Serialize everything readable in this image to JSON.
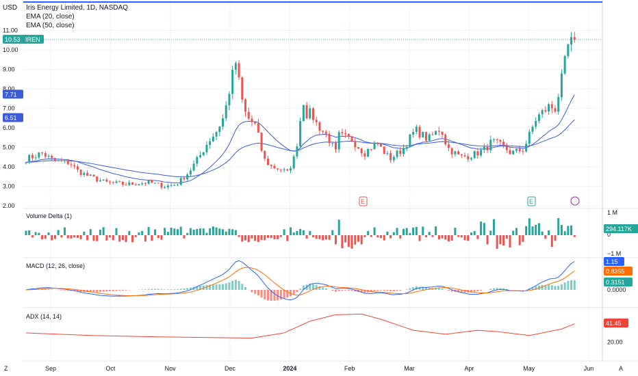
{
  "header": {
    "currency": "USD",
    "symbol_title": "Iris Energy Limited, 1D, NASDAQ",
    "ema20_label": "EMA (20, close)",
    "ema50_label": "EMA (50, close)",
    "last_price_badge": "10.53",
    "ticker_badge": "IREN"
  },
  "colors": {
    "up": "#26a69a",
    "down": "#ef5350",
    "ema": "#3b5bdb",
    "macd": "#2962ff",
    "signal": "#ff6d00",
    "adx": "#f44336",
    "axis_text": "#131722",
    "grid": "#f0f3fa"
  },
  "chart_data": [
    {
      "type": "candlestick",
      "pane": "price",
      "title": "Iris Energy Limited, 1D, NASDAQ",
      "ylabel": "USD",
      "ylim": [
        2.0,
        11.5
      ],
      "price_ticks": [
        "11.00",
        "10.00",
        "9.00",
        "8.00",
        "7.00",
        "6.00",
        "5.00",
        "4.00",
        "3.00",
        "2.00"
      ],
      "x_ticks": [
        "Sep",
        "Oct",
        "Nov",
        "Dec",
        "2024",
        "Feb",
        "Mar",
        "Apr",
        "May",
        "Jun"
      ],
      "ema_badges": {
        "ema20": "7.71",
        "ema50": "6.51"
      },
      "earnings_markers": [
        "E",
        "E"
      ],
      "bars": 171,
      "last_close": 10.53
    },
    {
      "type": "bar",
      "pane": "volume_delta",
      "label": "Volume Delta (1)",
      "ticks": [
        "1 M",
        "0",
        "−1 M"
      ],
      "last_value": "294.117K"
    },
    {
      "type": "line",
      "pane": "macd",
      "label": "MACD (12, 26, close)",
      "ticks": [
        "0.0000"
      ],
      "badges": {
        "macd": "1.15",
        "signal": "0.8355",
        "histogram": "0.3151"
      }
    },
    {
      "type": "line",
      "pane": "adx",
      "label": "ADX (14, 14)",
      "ticks": [
        "20.00"
      ],
      "last_value": "41.45"
    }
  ],
  "footer": {
    "tz_button": "Z",
    "auto_button": "A"
  }
}
